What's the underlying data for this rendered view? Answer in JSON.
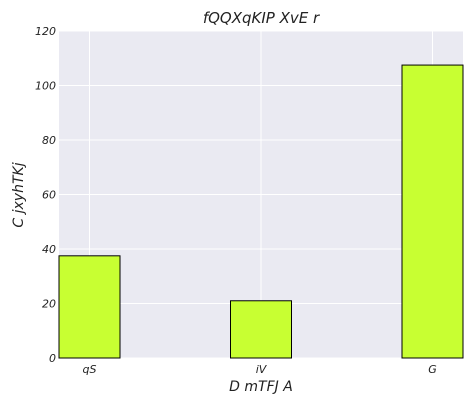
{
  "chart_data": {
    "type": "bar",
    "title": "fQQXqKIP XvE r",
    "xlabel": "D mTFJ A",
    "ylabel": "C jxyhTKj",
    "categories": [
      "qS",
      "iV",
      "G"
    ],
    "values": [
      37.5,
      21,
      107.5
    ],
    "ylim": [
      0,
      120
    ],
    "yticks": [
      0,
      20,
      40,
      60,
      80,
      100,
      120
    ],
    "grid": true,
    "colors": {
      "bar_fill": "#c8ff32",
      "bar_edge": "#000000",
      "plot_bg": "#eaeaf2",
      "grid": "#ffffff"
    }
  }
}
